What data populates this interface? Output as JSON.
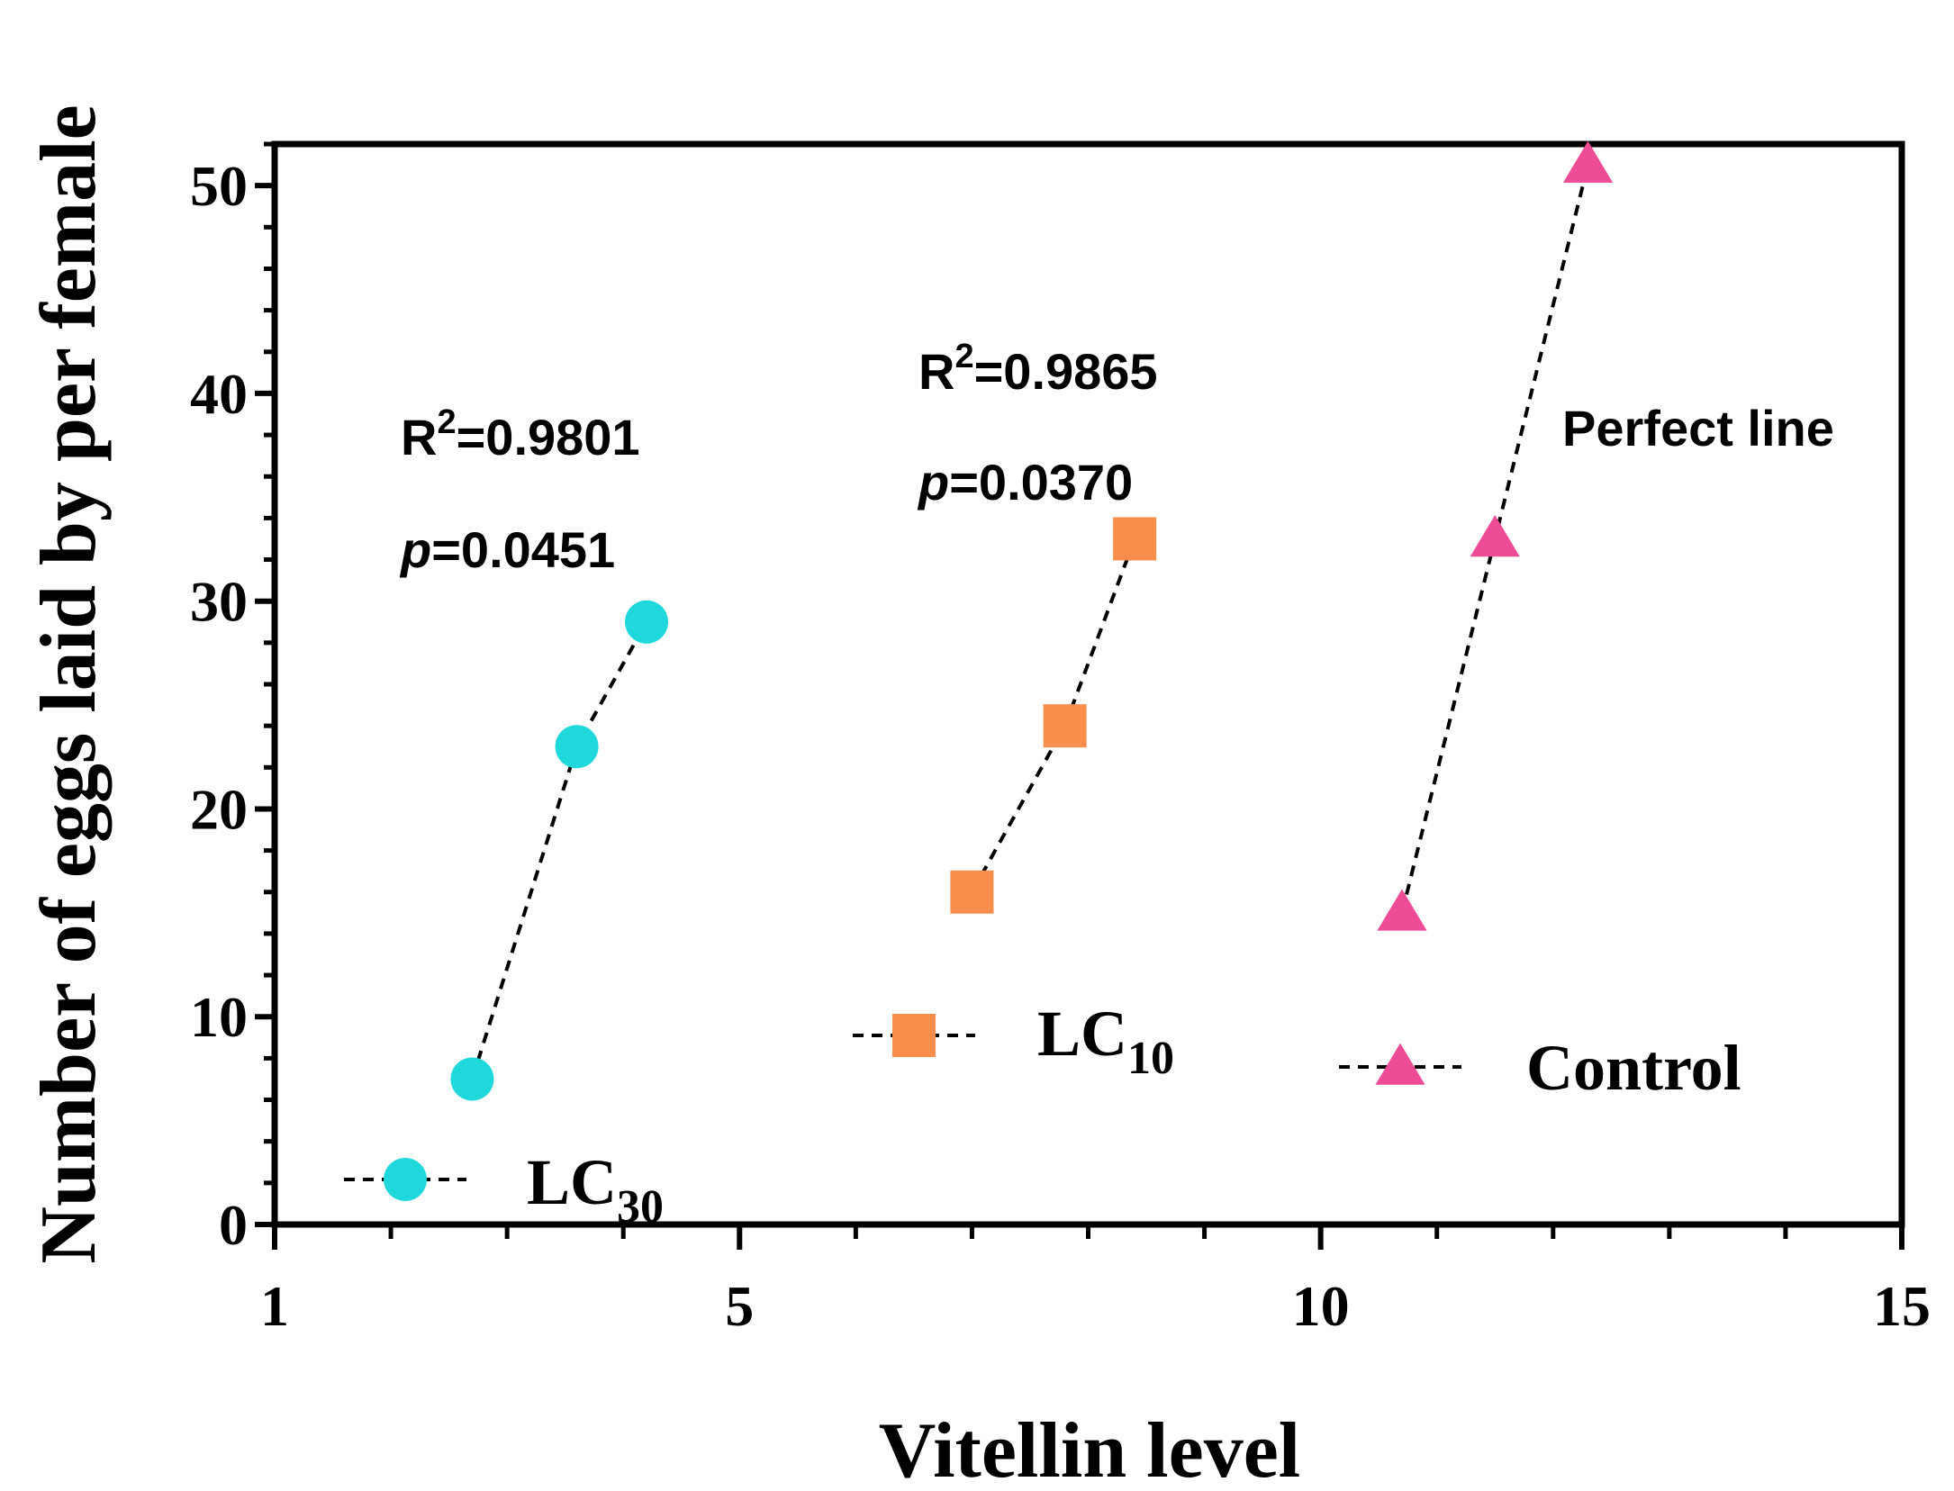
{
  "chart_data": {
    "type": "scatter",
    "title": "",
    "xlabel": "Vitellin level",
    "ylabel": "Number of eggs laid by per female",
    "xlim": [
      1,
      15
    ],
    "ylim": [
      0,
      52
    ],
    "xticks": [
      1,
      5,
      10,
      15
    ],
    "xtick_labels": [
      "1",
      "5",
      "10",
      "15"
    ],
    "yticks": [
      0,
      10,
      20,
      30,
      40,
      50
    ],
    "ytick_labels": [
      "0",
      "10",
      "20",
      "30",
      "40",
      "50"
    ],
    "grid": false,
    "series": [
      {
        "name": "LC30",
        "legend_main": "LC",
        "legend_sub": "30",
        "marker": "circle",
        "color": "#1ED8DC",
        "x": [
          2.7,
          3.6,
          4.2
        ],
        "y": [
          7,
          23,
          29
        ],
        "fit": "dashed"
      },
      {
        "name": "LC10",
        "legend_main": "LC",
        "legend_sub": "10",
        "marker": "square",
        "color": "#F98E4C",
        "x": [
          7.0,
          7.8,
          8.4
        ],
        "y": [
          16,
          24,
          33
        ],
        "fit": "dashed"
      },
      {
        "name": "Control",
        "legend_main": "Control",
        "legend_sub": "",
        "marker": "triangle",
        "color": "#EE4C96",
        "x": [
          10.7,
          11.5,
          12.3
        ],
        "y": [
          15,
          33,
          51
        ],
        "fit": "dashed"
      }
    ],
    "annotations": [
      {
        "id": "lc30_r2",
        "r": "R",
        "sup": "2",
        "text": "=0.9801"
      },
      {
        "id": "lc30_p",
        "p": "p",
        "text": "=0.0451"
      },
      {
        "id": "lc10_r2",
        "r": "R",
        "sup": "2",
        "text": "=0.9865"
      },
      {
        "id": "lc10_p",
        "p": "p",
        "text": "=0.0370"
      },
      {
        "id": "control_note",
        "text": "Perfect line"
      }
    ],
    "legend": "inline"
  }
}
